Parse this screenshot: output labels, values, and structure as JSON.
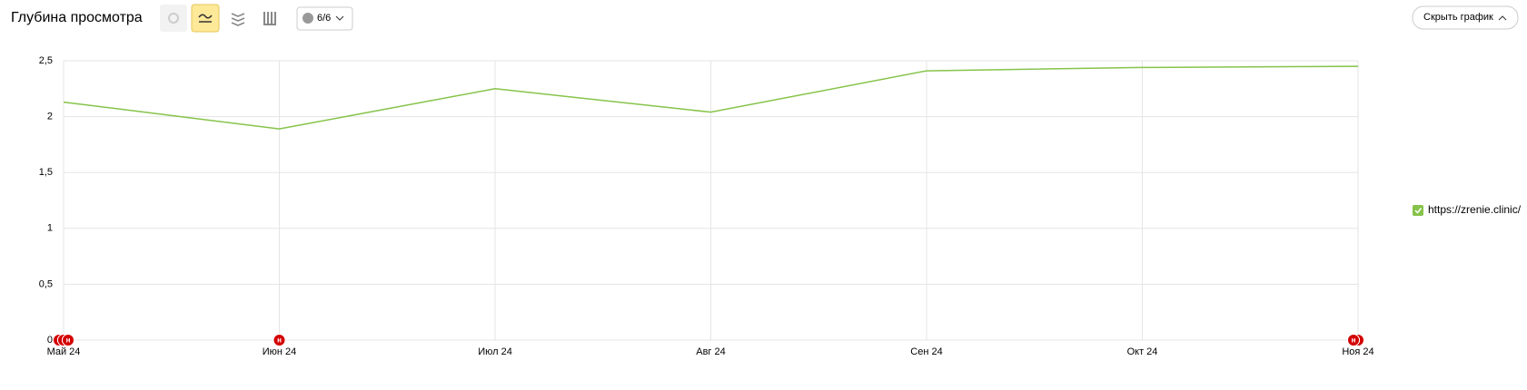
{
  "chart_data": {
    "type": "line",
    "title": "Глубина просмотра",
    "controls": {
      "comments": "6/6",
      "hide_chart": "Скрыть график"
    },
    "categories": [
      "Май 24",
      "Июн 24",
      "Июл 24",
      "Авг 24",
      "Сен 24",
      "Окт 24",
      "Ноя 24"
    ],
    "series": [
      {
        "name": "https://zrenie.clinic/",
        "color": "#86c34a",
        "values": [
          2.13,
          1.89,
          2.25,
          2.04,
          2.41,
          2.44,
          2.45
        ]
      }
    ],
    "ylim": [
      0,
      2.5
    ],
    "yticks": [
      0,
      {
        "value": 0.5,
        "label": "0,5"
      },
      1,
      {
        "value": 1.5,
        "label": "1,5"
      },
      2,
      {
        "value": 2.5,
        "label": "2,5"
      }
    ],
    "grid": true,
    "legend": "right",
    "annotations": [
      {
        "category": "Май 24",
        "label": "н"
      },
      {
        "category": "Май 24",
        "label": "н"
      },
      {
        "category": "Май 24",
        "label": "н"
      },
      {
        "category": "Июн 24",
        "label": "н"
      },
      {
        "category": "Ноя 24",
        "label": "н"
      },
      {
        "category": "Ноя 24",
        "label": "н"
      }
    ]
  }
}
